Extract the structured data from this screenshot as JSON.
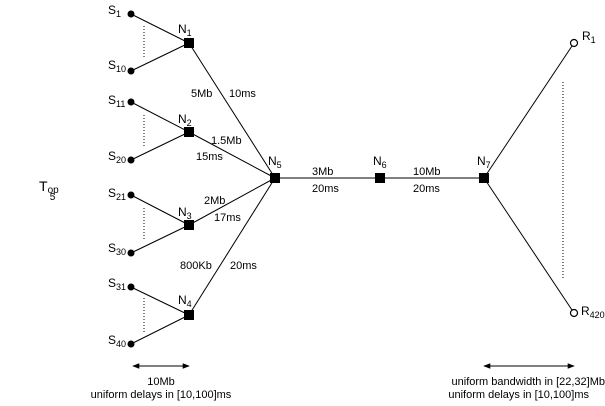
{
  "title": {
    "main": "T",
    "sub1": "op",
    "sub2": "5"
  },
  "senders": [
    {
      "id": "S1",
      "prefix": "S",
      "sub": "1"
    },
    {
      "id": "S10",
      "prefix": "S",
      "sub": "10"
    },
    {
      "id": "S11",
      "prefix": "S",
      "sub": "11"
    },
    {
      "id": "S20",
      "prefix": "S",
      "sub": "20"
    },
    {
      "id": "S21",
      "prefix": "S",
      "sub": "21"
    },
    {
      "id": "S30",
      "prefix": "S",
      "sub": "30"
    },
    {
      "id": "S31",
      "prefix": "S",
      "sub": "31"
    },
    {
      "id": "S40",
      "prefix": "S",
      "sub": "40"
    }
  ],
  "routers": [
    {
      "id": "N1",
      "prefix": "N",
      "sub": "1"
    },
    {
      "id": "N2",
      "prefix": "N",
      "sub": "2"
    },
    {
      "id": "N3",
      "prefix": "N",
      "sub": "3"
    },
    {
      "id": "N4",
      "prefix": "N",
      "sub": "4"
    },
    {
      "id": "N5",
      "prefix": "N",
      "sub": "5"
    },
    {
      "id": "N6",
      "prefix": "N",
      "sub": "6"
    },
    {
      "id": "N7",
      "prefix": "N",
      "sub": "7"
    }
  ],
  "receivers": [
    {
      "id": "R1",
      "prefix": "R",
      "sub": "1"
    },
    {
      "id": "R420",
      "prefix": "R",
      "sub": "420"
    }
  ],
  "links": [
    {
      "id": "N1-N5",
      "bandwidth": "5Mb",
      "delay": "10ms"
    },
    {
      "id": "N2-N5",
      "bandwidth": "1.5Mb",
      "delay": "15ms"
    },
    {
      "id": "N3-N5",
      "bandwidth": "2Mb",
      "delay": "17ms"
    },
    {
      "id": "N4-N5",
      "bandwidth": "800Kb",
      "delay": "20ms"
    },
    {
      "id": "N5-N6",
      "bandwidth": "3Mb",
      "delay": "20ms"
    },
    {
      "id": "N6-N7",
      "bandwidth": "10Mb",
      "delay": "20ms"
    }
  ],
  "legend_left": {
    "bandwidth": "10Mb",
    "delays": "uniform delays in [10,100]ms"
  },
  "legend_right": {
    "bandwidth": "uniform bandwidth in [22,32]Mb",
    "delays": "uniform delays in [10,100]ms"
  }
}
